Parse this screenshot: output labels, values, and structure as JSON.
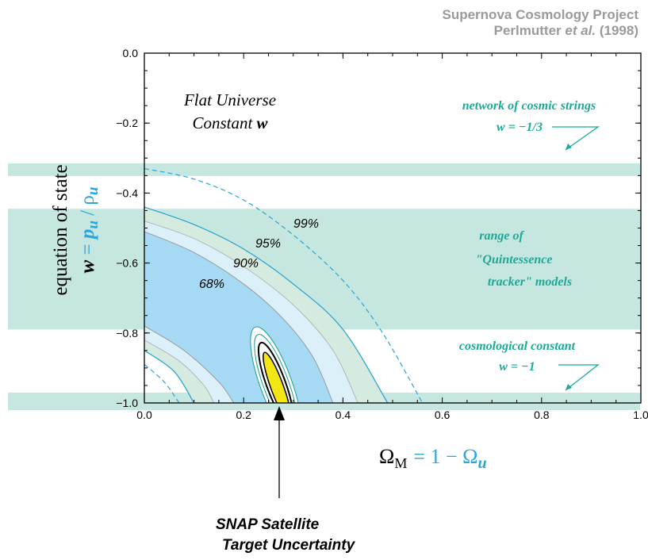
{
  "header": {
    "line1": "Supernova Cosmology Project",
    "line2_name": "Perlmutter",
    "line2_etal": "et al.",
    "line2_year": "(1998)"
  },
  "chart_data": {
    "type": "contour",
    "xlabel": "ΩM = 1 − Ωu",
    "ylabel": "equation of state w = pu / ρu",
    "xlim": [
      0.0,
      1.0
    ],
    "ylim": [
      -1.0,
      0.0
    ],
    "x_ticks": [
      "0.0",
      "0.2",
      "0.4",
      "0.6",
      "0.8",
      "1.0"
    ],
    "y_ticks": [
      "0.0",
      "−0.2",
      "−0.4",
      "−0.6",
      "−0.8",
      "−1.0"
    ],
    "annotations": {
      "flat_line1": "Flat Universe",
      "flat_line2_text": "Constant ",
      "flat_line2_w": "w",
      "strings_line1": "network of cosmic strings",
      "strings_line2": "w = −1/3",
      "quint_line1": "range of",
      "quint_line2": "\"Quintessence",
      "quint_line3": "tracker\" models",
      "cc_line1": "cosmological constant",
      "cc_line2": "w = −1",
      "snap_line1": "SNAP Satellite",
      "snap_line2": "Target Uncertainty"
    },
    "confidence_labels": [
      "68%",
      "90%",
      "95%",
      "99%"
    ],
    "bands": [
      {
        "name": "network of cosmic strings",
        "w_center": -0.333
      },
      {
        "name": "range of Quintessence tracker models",
        "w_range": [
          -0.79,
          -0.445
        ]
      },
      {
        "name": "cosmological constant",
        "w_center": -1.0
      }
    ],
    "contours": [
      {
        "level": "68%",
        "upper": [
          [
            0.0,
            -0.51
          ],
          [
            0.1,
            -0.57
          ],
          [
            0.2,
            -0.66
          ],
          [
            0.28,
            -0.76
          ],
          [
            0.34,
            -0.87
          ],
          [
            0.38,
            -1.0
          ]
        ],
        "lower": [
          [
            0.0,
            -0.78
          ],
          [
            0.08,
            -0.85
          ],
          [
            0.15,
            -0.94
          ],
          [
            0.18,
            -1.0
          ]
        ]
      },
      {
        "level": "90%",
        "upper": [
          [
            0.0,
            -0.48
          ],
          [
            0.1,
            -0.53
          ],
          [
            0.2,
            -0.61
          ],
          [
            0.3,
            -0.72
          ],
          [
            0.38,
            -0.85
          ],
          [
            0.43,
            -1.0
          ]
        ],
        "lower": [
          [
            0.0,
            -0.82
          ],
          [
            0.07,
            -0.88
          ],
          [
            0.12,
            -0.95
          ],
          [
            0.14,
            -1.0
          ]
        ]
      },
      {
        "level": "95%",
        "upper": [
          [
            0.0,
            -0.44
          ],
          [
            0.1,
            -0.49
          ],
          [
            0.2,
            -0.56
          ],
          [
            0.3,
            -0.66
          ],
          [
            0.4,
            -0.79
          ],
          [
            0.49,
            -1.0
          ]
        ],
        "lower": [
          [
            0.0,
            -0.85
          ],
          [
            0.06,
            -0.91
          ],
          [
            0.1,
            -1.0
          ]
        ]
      },
      {
        "level": "99%",
        "upper": [
          [
            0.0,
            -0.33
          ],
          [
            0.1,
            -0.36
          ],
          [
            0.2,
            -0.42
          ],
          [
            0.3,
            -0.52
          ],
          [
            0.4,
            -0.65
          ],
          [
            0.48,
            -0.8
          ],
          [
            0.56,
            -1.0
          ]
        ],
        "lower": [
          [
            0.0,
            -0.89
          ],
          [
            0.04,
            -0.94
          ],
          [
            0.07,
            -1.0
          ]
        ]
      }
    ],
    "snap_ellipse": {
      "center_x": 0.265,
      "center_y": -0.945,
      "x_extent": [
        0.23,
        0.3
      ],
      "y_extent": [
        -1.0,
        -0.89
      ]
    },
    "colors": {
      "band": "#c6e6e0",
      "band_text": "#1aaa99",
      "contour68": "#a6d9f3",
      "contour90": "#dcf0fa",
      "contour95": "#d6ebdf",
      "line": "#26a6d6",
      "snap_fill": "#f2e614",
      "axis_accent": "#2aa6dc"
    }
  }
}
